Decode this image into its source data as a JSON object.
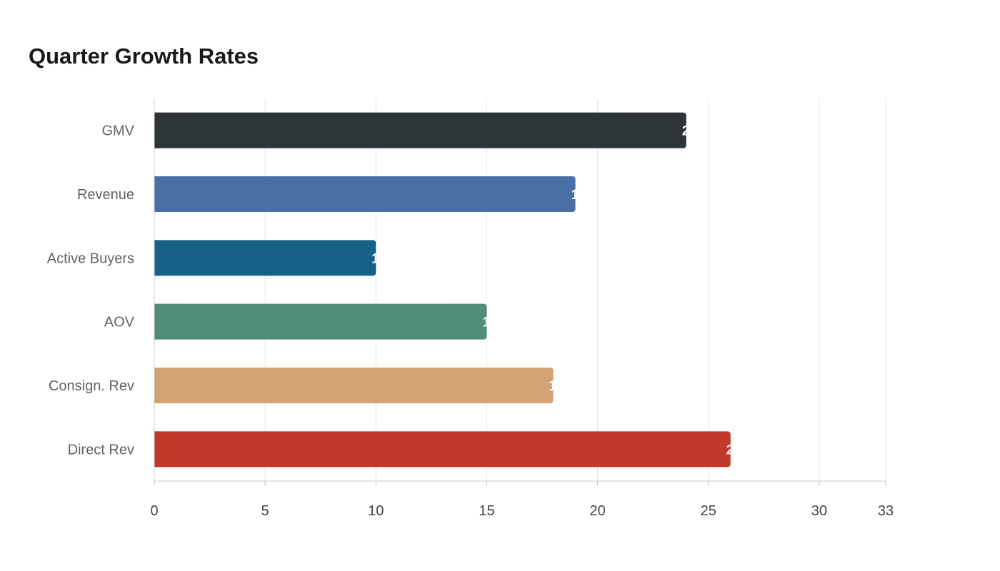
{
  "chart_data": {
    "type": "bar",
    "orientation": "horizontal",
    "title": "Quarter Growth Rates",
    "xlabel": "",
    "ylabel": "",
    "categories": [
      "GMV",
      "Revenue",
      "Active Buyers",
      "AOV",
      "Consign. Rev",
      "Direct Rev"
    ],
    "values": [
      24,
      19,
      10,
      15,
      18,
      26
    ],
    "colors": [
      "#2e3538",
      "#4a6fa5",
      "#176087",
      "#4f8c7a",
      "#d4a373",
      "#c0392b"
    ],
    "xlim": [
      0,
      33
    ],
    "x_ticks": [
      0,
      5,
      10,
      15,
      20,
      25,
      30,
      33
    ],
    "grid": "vertical",
    "legend": "none",
    "data_labels": "inside-end"
  }
}
